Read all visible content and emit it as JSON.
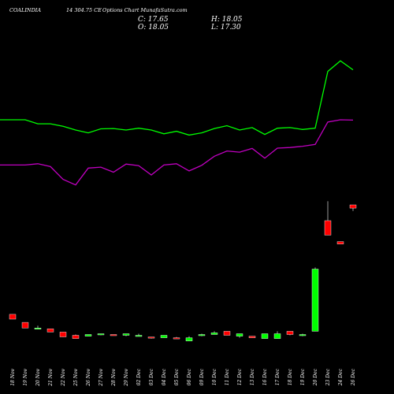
{
  "header": {
    "symbol": "COALINDIA",
    "contract": "14 304.75 CE",
    "subtitle": "Options Chart MunafaSutra.com",
    "close_label": "C: 17.65",
    "high_label": "H: 18.05",
    "open_label": "O: 18.05",
    "low_label": "L: 17.30"
  },
  "chart_data": {
    "type": "candlestick",
    "title": "COALINDIA 14 304.75 CE Options Chart MunafaSutra.com",
    "categories": [
      "18 Nov",
      "19 Nov",
      "20 Nov",
      "21 Nov",
      "22 Nov",
      "25 Nov",
      "26 Nov",
      "27 Nov",
      "28 Nov",
      "29 Nov",
      "02 Dec",
      "03 Dec",
      "04 Dec",
      "05 Dec",
      "06 Dec",
      "09 Dec",
      "10 Dec",
      "11 Dec",
      "12 Dec",
      "13 Dec",
      "16 Dec",
      "17 Dec",
      "18 Dec",
      "19 Dec",
      "20 Dec",
      "23 Dec",
      "24 Dec",
      "26 Dec"
    ],
    "candles": [
      {
        "o": 4.5,
        "h": 4.5,
        "l": 3.9,
        "c": 3.9
      },
      {
        "o": 3.5,
        "h": 3.5,
        "l": 2.8,
        "c": 2.8
      },
      {
        "o": 2.8,
        "h": 3.1,
        "l": 2.7,
        "c": 2.8
      },
      {
        "o": 2.7,
        "h": 2.7,
        "l": 2.3,
        "c": 2.3
      },
      {
        "o": 2.3,
        "h": 2.3,
        "l": 1.7,
        "c": 1.7
      },
      {
        "o": 1.9,
        "h": 2.0,
        "l": 1.5,
        "c": 1.5
      },
      {
        "o": 1.8,
        "h": 2.0,
        "l": 1.8,
        "c": 2.0
      },
      {
        "o": 2.0,
        "h": 2.1,
        "l": 1.9,
        "c": 2.1
      },
      {
        "o": 2.0,
        "h": 2.0,
        "l": 1.9,
        "c": 1.9
      },
      {
        "o": 1.9,
        "h": 2.1,
        "l": 1.8,
        "c": 2.1
      },
      {
        "o": 1.9,
        "h": 2.1,
        "l": 1.8,
        "c": 1.9
      },
      {
        "o": 1.7,
        "h": 1.7,
        "l": 1.5,
        "c": 1.6
      },
      {
        "o": 1.6,
        "h": 1.9,
        "l": 1.6,
        "c": 1.9
      },
      {
        "o": 1.6,
        "h": 1.7,
        "l": 1.5,
        "c": 1.5
      },
      {
        "o": 1.2,
        "h": 1.8,
        "l": 1.2,
        "c": 1.6
      },
      {
        "o": 1.9,
        "h": 2.1,
        "l": 1.8,
        "c": 2.0
      },
      {
        "o": 2.0,
        "h": 2.4,
        "l": 2.0,
        "c": 2.2
      },
      {
        "o": 2.4,
        "h": 2.4,
        "l": 1.9,
        "c": 1.9
      },
      {
        "o": 1.8,
        "h": 2.1,
        "l": 1.6,
        "c": 2.1
      },
      {
        "o": 1.8,
        "h": 1.8,
        "l": 1.6,
        "c": 1.6
      },
      {
        "o": 1.5,
        "h": 2.1,
        "l": 1.5,
        "c": 2.1
      },
      {
        "o": 1.5,
        "h": 2.4,
        "l": 1.5,
        "c": 2.1
      },
      {
        "o": 2.4,
        "h": 2.4,
        "l": 1.9,
        "c": 2.0
      },
      {
        "o": 1.9,
        "h": 2.1,
        "l": 1.8,
        "c": 2.0
      },
      {
        "o": 2.4,
        "h": 10.3,
        "l": 2.4,
        "c": 10.1
      },
      {
        "o": 16.1,
        "h": 18.5,
        "l": 14.3,
        "c": 14.3
      },
      {
        "o": 13.5,
        "h": 13.5,
        "l": 13.2,
        "c": 13.2
      },
      {
        "o": 18.05,
        "h": 18.05,
        "l": 17.3,
        "c": 17.65
      }
    ],
    "ma_green": [
      37.5,
      37.5,
      36.2,
      36.2,
      35.4,
      34.2,
      33.3,
      34.6,
      34.7,
      34.2,
      34.8,
      34.2,
      33.0,
      33.8,
      32.6,
      33.3,
      34.7,
      35.6,
      34.2,
      35.0,
      32.8,
      34.8,
      35.0,
      34.4,
      34.8,
      53.0,
      56.4,
      53.5
    ],
    "ma_purple": [
      23.0,
      23.0,
      23.4,
      22.5,
      18.4,
      16.6,
      22.0,
      22.3,
      20.7,
      23.3,
      22.8,
      19.8,
      23.0,
      23.4,
      21.1,
      22.9,
      25.8,
      27.5,
      27.1,
      28.3,
      25.2,
      28.4,
      28.6,
      29.0,
      29.6,
      36.8,
      37.5,
      37.4
    ],
    "colors": {
      "up": "#00ff00",
      "down": "#ff0000",
      "ma_green": "#00ff00",
      "ma_purple": "#c000c0",
      "background": "#000000"
    },
    "grid": false,
    "legend": "none"
  }
}
